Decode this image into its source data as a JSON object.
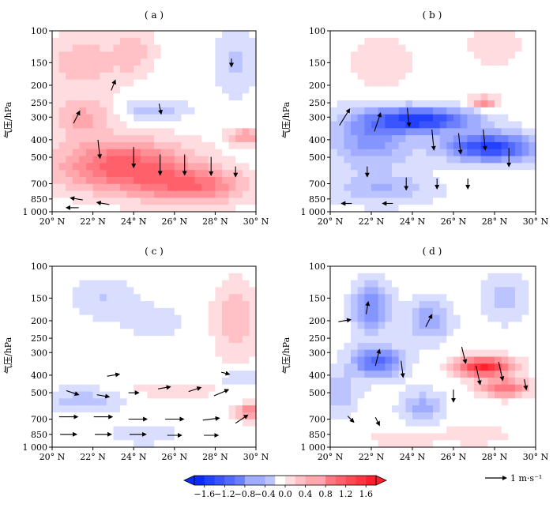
{
  "figure": {
    "colorbar": {
      "ticks": [
        "−1.6",
        "−1.2",
        "−0.8",
        "−0.4",
        "0.0",
        "0.4",
        "0.8",
        "1.2",
        "1.6"
      ],
      "min": -1.8,
      "max": 1.8,
      "step": 0.2,
      "neg_color": "#0b2cff",
      "pos_color": "#ff1f2d",
      "extend": "both"
    },
    "vector_key": {
      "label": "1 m·s⁻¹"
    }
  },
  "chart_data": [
    {
      "type": "heatmap",
      "title": "( a )",
      "ylabel": "气压/hPa",
      "x_ticks": [
        "20° N",
        "22° N",
        "24° N",
        "26° N",
        "28° N",
        "30° N"
      ],
      "xlim": [
        20,
        30
      ],
      "y_ticks": [
        "100",
        "150",
        "200",
        "250",
        "300",
        "400",
        "500",
        "700",
        "850",
        "1 000"
      ],
      "ylim": [
        1000,
        100
      ],
      "y_scale": "log",
      "features": [
        {
          "lat": 23.5,
          "p": 560,
          "dlat": 3.2,
          "lp": 0.32,
          "v": 1.25
        },
        {
          "lat": 27.0,
          "p": 720,
          "dlat": 2.5,
          "lp": 0.22,
          "v": 0.95
        },
        {
          "lat": 21.5,
          "p": 300,
          "dlat": 1.5,
          "lp": 0.25,
          "v": 0.55
        },
        {
          "lat": 21.5,
          "p": 150,
          "dlat": 1.8,
          "lp": 0.35,
          "v": 0.45
        },
        {
          "lat": 24.0,
          "p": 130,
          "dlat": 1.0,
          "lp": 0.3,
          "v": 0.4
        },
        {
          "lat": 25.0,
          "p": 275,
          "dlat": 1.6,
          "lp": 0.12,
          "v": -0.45
        },
        {
          "lat": 29.0,
          "p": 150,
          "dlat": 1.0,
          "lp": 0.4,
          "v": -0.35
        },
        {
          "lat": 29.5,
          "p": 380,
          "dlat": 0.8,
          "lp": 0.1,
          "v": 0.7
        }
      ],
      "vectors": [
        {
          "lat": 21.2,
          "p": 300,
          "u": 0.3,
          "w": 0.6
        },
        {
          "lat": 22.3,
          "p": 450,
          "u": 0.1,
          "w": -0.9
        },
        {
          "lat": 24.0,
          "p": 500,
          "u": 0.0,
          "w": -1.0
        },
        {
          "lat": 25.3,
          "p": 550,
          "u": 0.0,
          "w": -1.0
        },
        {
          "lat": 26.5,
          "p": 550,
          "u": 0.0,
          "w": -1.0
        },
        {
          "lat": 27.8,
          "p": 560,
          "u": 0.0,
          "w": -0.9
        },
        {
          "lat": 29.0,
          "p": 600,
          "u": 0.0,
          "w": -0.5
        },
        {
          "lat": 21.2,
          "p": 850,
          "u": -0.6,
          "w": 0.1
        },
        {
          "lat": 22.5,
          "p": 900,
          "u": -0.6,
          "w": 0.1
        },
        {
          "lat": 21.0,
          "p": 950,
          "u": -0.6,
          "w": 0.0
        },
        {
          "lat": 23.0,
          "p": 200,
          "u": 0.2,
          "w": 0.5
        },
        {
          "lat": 25.3,
          "p": 270,
          "u": 0.1,
          "w": -0.5
        },
        {
          "lat": 28.8,
          "p": 150,
          "u": 0.0,
          "w": -0.4
        }
      ]
    },
    {
      "type": "heatmap",
      "title": "( b )",
      "ylabel": "气压/hPa",
      "x_ticks": [
        "20° N",
        "22° N",
        "24° N",
        "26° N",
        "28° N",
        "30° N"
      ],
      "xlim": [
        20,
        30
      ],
      "y_ticks": [
        "100",
        "150",
        "200",
        "250",
        "300",
        "400",
        "500",
        "700",
        "850",
        "1 000"
      ],
      "ylim": [
        1000,
        100
      ],
      "y_scale": "log",
      "features": [
        {
          "lat": 24.5,
          "p": 310,
          "dlat": 2.5,
          "lp": 0.15,
          "v": -1.6
        },
        {
          "lat": 27.8,
          "p": 440,
          "dlat": 2.2,
          "lp": 0.18,
          "v": -1.6
        },
        {
          "lat": 22.0,
          "p": 400,
          "dlat": 2.0,
          "lp": 0.35,
          "v": -0.8
        },
        {
          "lat": 22.5,
          "p": 750,
          "dlat": 2.5,
          "lp": 0.2,
          "v": -0.5
        },
        {
          "lat": 27.5,
          "p": 250,
          "dlat": 0.7,
          "lp": 0.08,
          "v": 0.8
        },
        {
          "lat": 22.5,
          "p": 150,
          "dlat": 1.5,
          "lp": 0.3,
          "v": 0.3
        },
        {
          "lat": 28.0,
          "p": 120,
          "dlat": 1.5,
          "lp": 0.3,
          "v": 0.2
        }
      ],
      "vectors": [
        {
          "lat": 20.7,
          "p": 300,
          "u": 0.5,
          "w": 0.8
        },
        {
          "lat": 22.3,
          "p": 320,
          "u": 0.3,
          "w": 0.9
        },
        {
          "lat": 23.8,
          "p": 300,
          "u": 0.1,
          "w": -0.9
        },
        {
          "lat": 25.0,
          "p": 400,
          "u": 0.1,
          "w": -1.0
        },
        {
          "lat": 26.3,
          "p": 420,
          "u": 0.1,
          "w": -1.0
        },
        {
          "lat": 27.5,
          "p": 400,
          "u": 0.1,
          "w": -1.0
        },
        {
          "lat": 28.7,
          "p": 500,
          "u": 0.0,
          "w": -0.9
        },
        {
          "lat": 21.8,
          "p": 600,
          "u": 0.0,
          "w": -0.5
        },
        {
          "lat": 23.7,
          "p": 700,
          "u": 0.0,
          "w": -0.6
        },
        {
          "lat": 25.2,
          "p": 700,
          "u": 0.0,
          "w": -0.5
        },
        {
          "lat": 26.7,
          "p": 700,
          "u": 0.0,
          "w": -0.5
        },
        {
          "lat": 20.8,
          "p": 900,
          "u": -0.5,
          "w": 0.0
        },
        {
          "lat": 22.8,
          "p": 900,
          "u": -0.5,
          "w": 0.0
        }
      ]
    },
    {
      "type": "heatmap",
      "title": "( c )",
      "ylabel": "气压/hPa",
      "x_ticks": [
        "20° N",
        "22° N",
        "24° N",
        "26° N",
        "28° N",
        "30° N"
      ],
      "xlim": [
        20,
        30
      ],
      "y_ticks": [
        "100",
        "150",
        "200",
        "250",
        "300",
        "400",
        "500",
        "700",
        "850",
        "1 000"
      ],
      "ylim": [
        1000,
        100
      ],
      "y_scale": "log",
      "features": [
        {
          "lat": 29.0,
          "p": 200,
          "dlat": 1.0,
          "lp": 0.45,
          "v": 0.5
        },
        {
          "lat": 29.7,
          "p": 640,
          "dlat": 0.7,
          "lp": 0.1,
          "v": 0.9
        },
        {
          "lat": 21.5,
          "p": 550,
          "dlat": 2.0,
          "lp": 0.15,
          "v": -0.4
        },
        {
          "lat": 22.5,
          "p": 150,
          "dlat": 1.5,
          "lp": 0.25,
          "v": -0.3
        },
        {
          "lat": 25.0,
          "p": 200,
          "dlat": 1.5,
          "lp": 0.2,
          "v": -0.25
        },
        {
          "lat": 29.2,
          "p": 420,
          "dlat": 0.8,
          "lp": 0.1,
          "v": -0.35
        },
        {
          "lat": 26.0,
          "p": 480,
          "dlat": 2.0,
          "lp": 0.1,
          "v": 0.3
        },
        {
          "lat": 24.5,
          "p": 850,
          "dlat": 2.0,
          "lp": 0.15,
          "v": -0.2
        }
      ],
      "vectors": [
        {
          "lat": 21.0,
          "p": 500,
          "u": 0.6,
          "w": -0.2
        },
        {
          "lat": 22.5,
          "p": 520,
          "u": 0.6,
          "w": -0.1
        },
        {
          "lat": 24.0,
          "p": 500,
          "u": 0.5,
          "w": 0.0
        },
        {
          "lat": 25.5,
          "p": 470,
          "u": 0.6,
          "w": 0.1
        },
        {
          "lat": 27.0,
          "p": 480,
          "u": 0.6,
          "w": 0.2
        },
        {
          "lat": 28.3,
          "p": 500,
          "u": 0.7,
          "w": 0.3
        },
        {
          "lat": 20.8,
          "p": 680,
          "u": 0.9,
          "w": 0.0
        },
        {
          "lat": 22.5,
          "p": 680,
          "u": 0.9,
          "w": 0.0
        },
        {
          "lat": 24.2,
          "p": 700,
          "u": 0.9,
          "w": 0.0
        },
        {
          "lat": 26.0,
          "p": 700,
          "u": 0.9,
          "w": 0.0
        },
        {
          "lat": 27.8,
          "p": 700,
          "u": 0.8,
          "w": 0.1
        },
        {
          "lat": 29.3,
          "p": 700,
          "u": 0.6,
          "w": 0.4
        },
        {
          "lat": 20.8,
          "p": 850,
          "u": 0.8,
          "w": 0.0
        },
        {
          "lat": 22.5,
          "p": 850,
          "u": 0.8,
          "w": 0.0
        },
        {
          "lat": 24.2,
          "p": 850,
          "u": 0.8,
          "w": 0.0
        },
        {
          "lat": 26.0,
          "p": 860,
          "u": 0.7,
          "w": 0.0
        },
        {
          "lat": 27.8,
          "p": 860,
          "u": 0.7,
          "w": 0.0
        },
        {
          "lat": 23.0,
          "p": 400,
          "u": 0.6,
          "w": 0.1
        },
        {
          "lat": 28.5,
          "p": 390,
          "u": 0.4,
          "w": -0.1
        }
      ]
    },
    {
      "type": "heatmap",
      "title": "( d )",
      "ylabel": "气压/hPa",
      "x_ticks": [
        "20° N",
        "22° N",
        "24° N",
        "26° N",
        "28° N",
        "30° N"
      ],
      "xlim": [
        20,
        30
      ],
      "y_ticks": [
        "100",
        "150",
        "200",
        "250",
        "300",
        "400",
        "500",
        "700",
        "850",
        "1 000"
      ],
      "ylim": [
        1000,
        100
      ],
      "y_scale": "log",
      "features": [
        {
          "lat": 27.5,
          "p": 360,
          "dlat": 1.3,
          "lp": 0.12,
          "v": 1.8
        },
        {
          "lat": 28.5,
          "p": 470,
          "dlat": 1.2,
          "lp": 0.12,
          "v": 1.0
        },
        {
          "lat": 22.3,
          "p": 340,
          "dlat": 1.2,
          "lp": 0.2,
          "v": -1.2
        },
        {
          "lat": 22.0,
          "p": 170,
          "dlat": 0.9,
          "lp": 0.3,
          "v": -0.9
        },
        {
          "lat": 24.8,
          "p": 200,
          "dlat": 1.0,
          "lp": 0.25,
          "v": -0.7
        },
        {
          "lat": 24.5,
          "p": 600,
          "dlat": 1.0,
          "lp": 0.2,
          "v": -0.6
        },
        {
          "lat": 20.5,
          "p": 500,
          "dlat": 0.8,
          "lp": 0.25,
          "v": -0.5
        },
        {
          "lat": 28.5,
          "p": 150,
          "dlat": 1.0,
          "lp": 0.3,
          "v": -0.4
        },
        {
          "lat": 23.5,
          "p": 900,
          "dlat": 1.5,
          "lp": 0.1,
          "v": 0.3
        },
        {
          "lat": 27.0,
          "p": 850,
          "dlat": 1.5,
          "lp": 0.12,
          "v": 0.3
        }
      ],
      "vectors": [
        {
          "lat": 21.8,
          "p": 170,
          "u": 0.1,
          "w": 0.6
        },
        {
          "lat": 22.3,
          "p": 320,
          "u": 0.2,
          "w": 0.8
        },
        {
          "lat": 23.5,
          "p": 370,
          "u": 0.1,
          "w": -0.8
        },
        {
          "lat": 24.8,
          "p": 200,
          "u": 0.3,
          "w": 0.6
        },
        {
          "lat": 26.5,
          "p": 310,
          "u": 0.2,
          "w": -0.8
        },
        {
          "lat": 27.2,
          "p": 400,
          "u": 0.2,
          "w": -0.9
        },
        {
          "lat": 28.3,
          "p": 380,
          "u": 0.2,
          "w": -0.9
        },
        {
          "lat": 29.5,
          "p": 450,
          "u": 0.1,
          "w": -0.5
        },
        {
          "lat": 20.7,
          "p": 200,
          "u": 0.6,
          "w": 0.1
        },
        {
          "lat": 21.0,
          "p": 700,
          "u": 0.3,
          "w": -0.3
        },
        {
          "lat": 22.3,
          "p": 720,
          "u": 0.2,
          "w": -0.4
        },
        {
          "lat": 26.0,
          "p": 520,
          "u": 0.0,
          "w": -0.6
        }
      ]
    }
  ]
}
